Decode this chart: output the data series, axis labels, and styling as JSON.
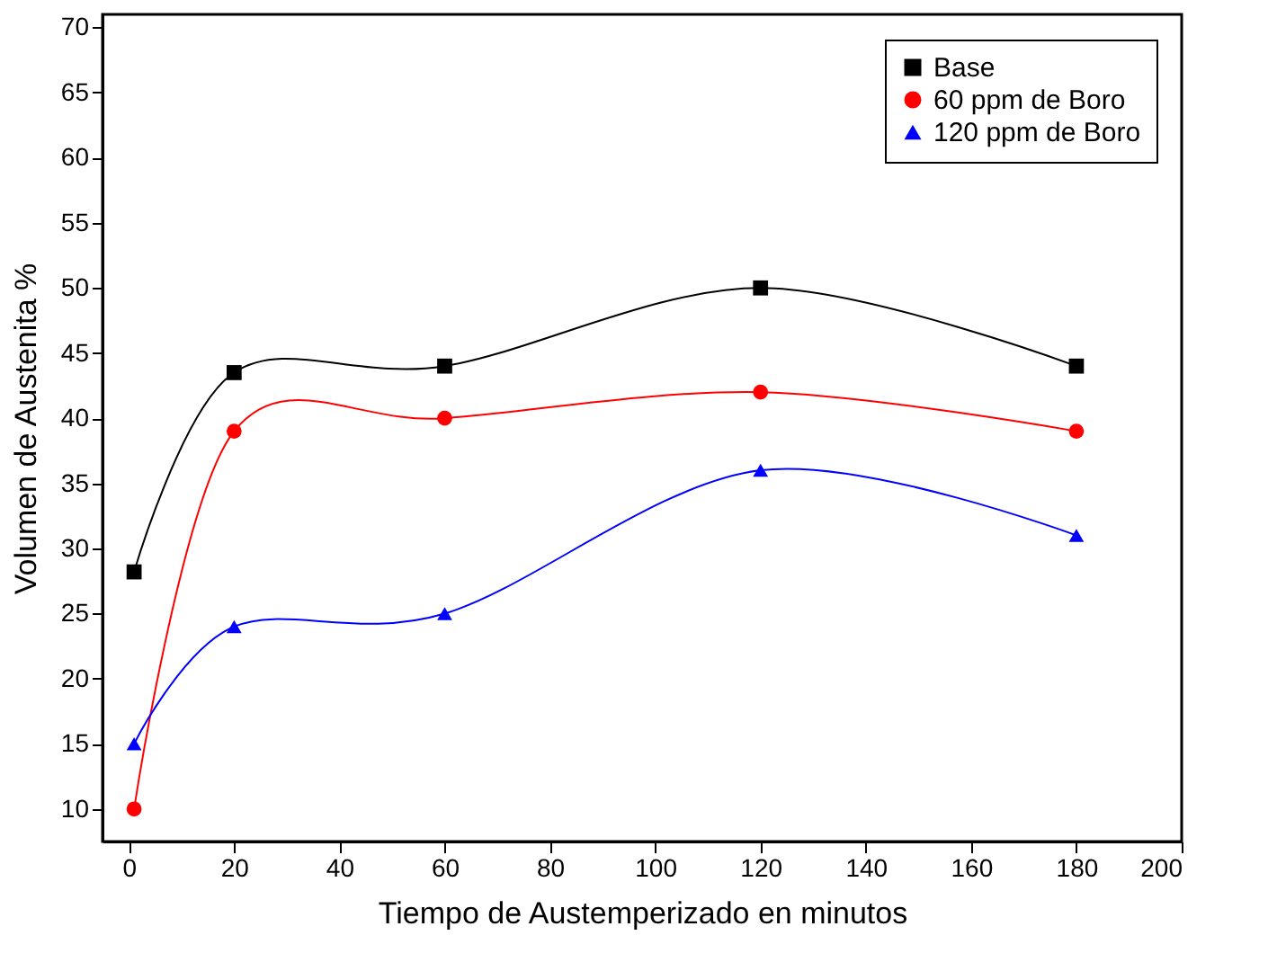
{
  "chart_data": {
    "type": "line",
    "xlabel": "Tiempo de Austemperizado en minutos",
    "ylabel": "Volumen de Austenita %",
    "x": [
      1,
      20,
      60,
      120,
      180
    ],
    "series": [
      {
        "name": "Base",
        "color": "#000000",
        "marker": "square",
        "values": [
          28.2,
          43.5,
          44,
          50,
          44
        ]
      },
      {
        "name": "60 ppm de Boro",
        "color": "#ff0000",
        "marker": "circle",
        "values": [
          10,
          39,
          40,
          42,
          39
        ]
      },
      {
        "name": "120 ppm de Boro",
        "color": "#0000ff",
        "marker": "triangle",
        "values": [
          15,
          24,
          25,
          36,
          31
        ]
      }
    ],
    "xlim": [
      -5,
      200
    ],
    "xticks": [
      0,
      20,
      40,
      60,
      80,
      100,
      120,
      140,
      160,
      180,
      200
    ],
    "ylim": [
      7.5,
      71
    ],
    "yticks": [
      10,
      15,
      20,
      25,
      30,
      35,
      40,
      45,
      50,
      55,
      60,
      65,
      70
    ],
    "grid": false,
    "legend": "top right",
    "line_style": "solid"
  }
}
